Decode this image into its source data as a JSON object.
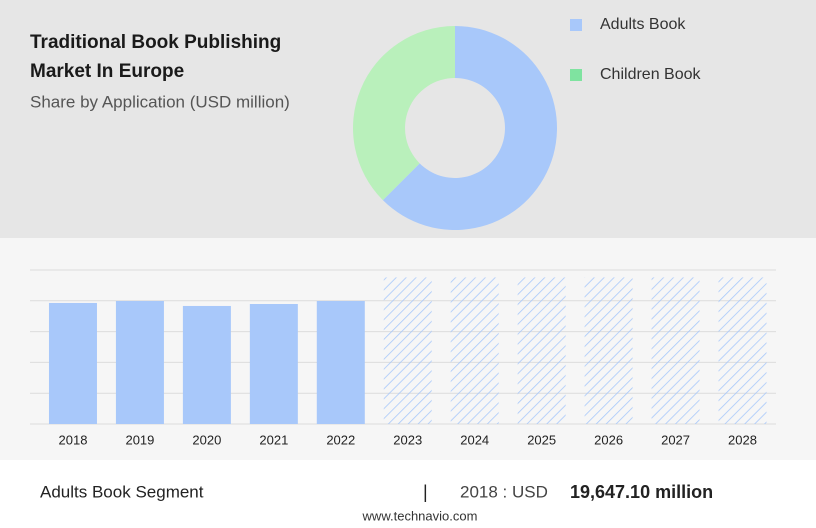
{
  "chart_data": [
    {
      "type": "pie",
      "title": "Traditional Book Publishing Market In Europe",
      "subtitle": "Share by Application (USD million)",
      "categories": [
        "Adults Book",
        "Children Book"
      ],
      "values": [
        62.5,
        37.5
      ],
      "colors": [
        "#a8c8fa",
        "#b9f0bb"
      ],
      "legend_colors": [
        "#a8c8fa",
        "#7fe3a0"
      ],
      "hole": 0.49,
      "legend": "right"
    },
    {
      "type": "bar",
      "categories": [
        "2018",
        "2019",
        "2020",
        "2021",
        "2022",
        "2023",
        "2024",
        "2025",
        "2026",
        "2027",
        "2028"
      ],
      "values": [
        19647.1,
        19970,
        19160,
        19480,
        19970,
        23800,
        23800,
        23800,
        23800,
        23800,
        23800
      ],
      "hatched": [
        false,
        false,
        false,
        false,
        false,
        true,
        true,
        true,
        true,
        true,
        true
      ],
      "color": "#a8c8fa",
      "ylim": [
        0,
        25000
      ],
      "yticks": [
        0,
        5000,
        10000,
        15000,
        20000,
        25000
      ],
      "grid": true
    }
  ],
  "footer": {
    "segment": "Adults Book Segment",
    "separator": "|",
    "year": "2018 : USD",
    "value": "19,647.10 million",
    "source": "www.technavio.com"
  }
}
